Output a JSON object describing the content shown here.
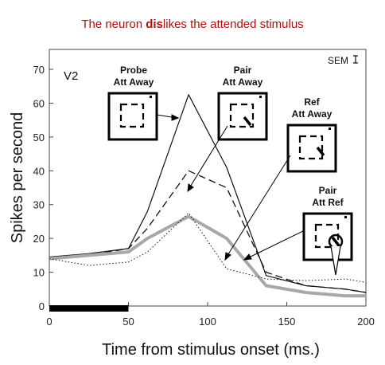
{
  "title_parts": {
    "before": "The neuron ",
    "bold": "dis",
    "after": "likes the attended stimulus"
  },
  "chart_data": {
    "type": "line",
    "panel_label": "V2",
    "sem_label": "SEM",
    "xlabel": "Time from stimulus onset (ms.)",
    "ylabel": "Spikes per second",
    "xlim": [
      0,
      200
    ],
    "ylim": [
      0,
      70
    ],
    "xticks": [
      0,
      50,
      100,
      150,
      200
    ],
    "yticks": [
      0,
      10,
      20,
      30,
      40,
      50,
      60,
      70
    ],
    "stimulus_bar": [
      0,
      50
    ],
    "grid": false,
    "series": [
      {
        "style": "solid-thin",
        "x": [
          0,
          25,
          50,
          62,
          88,
          112,
          137,
          162,
          187,
          200
        ],
        "y": [
          14.5,
          15.5,
          17,
          28,
          62.5,
          41,
          9,
          6,
          5,
          4
        ]
      },
      {
        "style": "dashed",
        "x": [
          0,
          25,
          50,
          62,
          88,
          112,
          137,
          162,
          187,
          200
        ],
        "y": [
          14,
          15,
          17,
          23,
          40,
          35,
          10,
          6,
          5,
          4
        ]
      },
      {
        "style": "solid-thick-gray",
        "x": [
          0,
          25,
          50,
          62,
          88,
          112,
          137,
          162,
          187,
          200
        ],
        "y": [
          14,
          15,
          16,
          20,
          26.5,
          20,
          6,
          4,
          3,
          3
        ]
      },
      {
        "style": "dotted",
        "x": [
          0,
          25,
          50,
          62,
          88,
          112,
          137,
          162,
          187,
          200
        ],
        "y": [
          14,
          12,
          13,
          16,
          27.5,
          11,
          8,
          7.5,
          8,
          7
        ]
      }
    ],
    "annotations": [
      {
        "line1": "Probe",
        "line2": "Att Away",
        "icon": "probe-att-away"
      },
      {
        "line1": "Pair",
        "line2": "Att Away",
        "icon": "pair-att-away"
      },
      {
        "line1": "Ref",
        "line2": "Att Away",
        "icon": "ref-att-away"
      },
      {
        "line1": "Pair",
        "line2": "Att Ref",
        "icon": "pair-att-ref"
      }
    ]
  }
}
